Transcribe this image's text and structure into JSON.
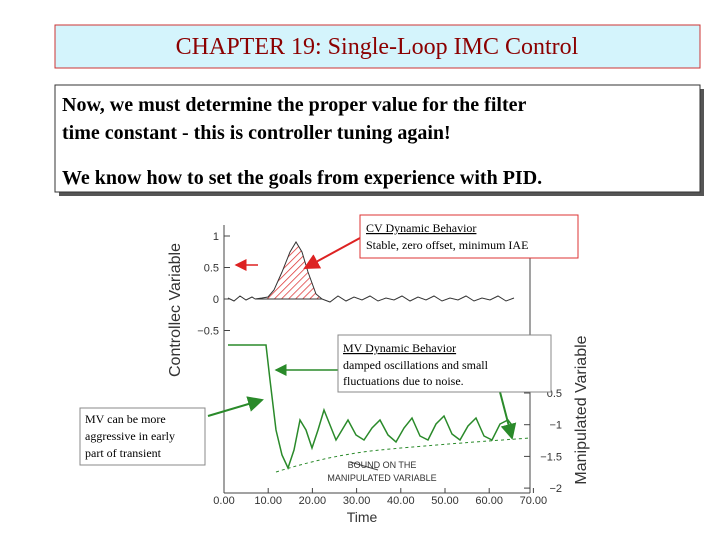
{
  "header": {
    "title": "CHAPTER 19: Single-Loop IMC Control"
  },
  "body": {
    "lines": [
      "Now, we must determine the proper value for the filter",
      "time constant - this is controller tuning again!",
      "We know how to set the goals from experience with PID."
    ]
  },
  "figure": {
    "left_axis_label": "Controllec Variable",
    "right_axis_label": "Manipulated Variable",
    "x_axis_label": "Time",
    "left_ticks": [
      "1",
      "0.5",
      "0",
      "−0.5"
    ],
    "right_ticks": [
      "0.5",
      "−1",
      "−1.5",
      "−2"
    ],
    "x_ticks": [
      "0.00",
      "10.00",
      "20.00",
      "30.00",
      "40.00",
      "50.00",
      "60.00",
      "70.00"
    ],
    "bound_label": [
      "BOUND ON THE",
      "MANIPULATED VARIABLE"
    ]
  },
  "callouts": {
    "cv": {
      "heading": "CV Dynamic Behavior",
      "text": "Stable, zero offset, minimum IAE"
    },
    "mv": {
      "heading": "MV Dynamic Behavior",
      "lines": [
        "damped oscillations and small",
        "fluctuations due to noise."
      ]
    },
    "early": {
      "lines": [
        "MV can be more",
        "aggressive in early",
        "part of transient"
      ]
    }
  }
}
